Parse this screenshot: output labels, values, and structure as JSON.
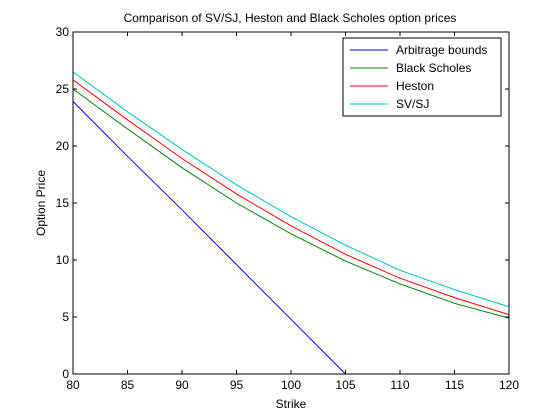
{
  "chart_data": {
    "type": "line",
    "title": "Comparison of SV/SJ, Heston and Black Scholes option prices",
    "xlabel": "Strike",
    "ylabel": "Option Price",
    "xlim": [
      80,
      120
    ],
    "ylim": [
      0,
      30
    ],
    "xticks": [
      80,
      85,
      90,
      95,
      100,
      105,
      110,
      115,
      120
    ],
    "yticks": [
      0,
      5,
      10,
      15,
      20,
      25,
      30
    ],
    "grid": false,
    "legend_position": "top-right",
    "x": [
      80,
      85,
      90,
      95,
      100,
      105,
      110,
      115,
      120
    ],
    "series": [
      {
        "name": "Arbitrage bounds",
        "color": "#0000ff",
        "x": [
          80,
          85,
          90,
          95,
          100,
          105,
          106,
          110,
          115,
          120
        ],
        "values": [
          23.9,
          19.1,
          14.4,
          9.6,
          4.8,
          0.0,
          0.0,
          0.0,
          0.0,
          0.0
        ]
      },
      {
        "name": "Black Scholes",
        "color": "#008000",
        "x": [
          80,
          85,
          90,
          95,
          100,
          105,
          110,
          115,
          120
        ],
        "values": [
          25.0,
          21.5,
          18.1,
          15.0,
          12.3,
          9.9,
          7.9,
          6.2,
          4.9
        ]
      },
      {
        "name": "Heston",
        "color": "#ff0000",
        "x": [
          80,
          85,
          90,
          95,
          100,
          105,
          110,
          115,
          120
        ],
        "values": [
          25.8,
          22.3,
          18.9,
          15.8,
          13.0,
          10.5,
          8.4,
          6.7,
          5.2
        ]
      },
      {
        "name": "SV/SJ",
        "color": "#00bfbf",
        "x": [
          80,
          85,
          90,
          95,
          100,
          105,
          110,
          115,
          120
        ],
        "values": [
          26.5,
          23.0,
          19.7,
          16.6,
          13.8,
          11.3,
          9.1,
          7.4,
          5.9
        ]
      }
    ]
  }
}
